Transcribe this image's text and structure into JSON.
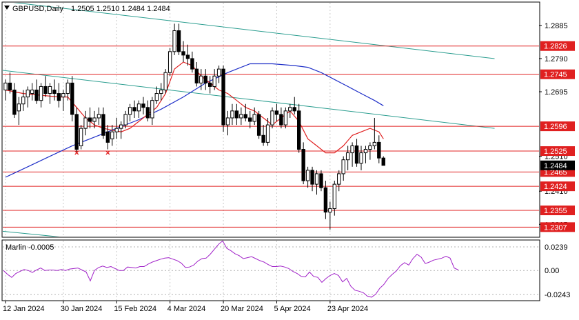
{
  "header": {
    "symbol_label": "GBPUSD,Daily",
    "ohlc_label": "1.2505 1.2510 1.2484 1.2484"
  },
  "indicator": {
    "label": "Marlin -0.0005",
    "ticks": [
      "0.0239",
      "0.00",
      "-0.0243"
    ],
    "values": [
      0.0,
      -0.004,
      -0.007,
      -0.003,
      -0.001,
      0.001,
      0.0,
      -0.002,
      0.0005,
      0.0025,
      0.0,
      0.0005,
      0.0005,
      0.0,
      0.001,
      0.0,
      0.0015,
      0.002,
      0.0025,
      0.0005,
      -0.0015,
      -0.0105,
      0.0,
      0.003,
      0.0045,
      0.003,
      0.004,
      0.002,
      0.0,
      0.0,
      0.0035,
      0.003,
      0.0025,
      0.004,
      0.004,
      0.0065,
      0.0085,
      0.01,
      0.0115,
      0.0125,
      0.013,
      0.0115,
      0.01,
      0.0075,
      0.003,
      0.0035,
      0.0055,
      0.0095,
      0.012,
      0.0125,
      0.0165,
      0.0215,
      0.0265,
      0.03,
      0.0225,
      0.02,
      0.017,
      0.015,
      0.012,
      0.013,
      0.014,
      0.012,
      0.01,
      0.0085,
      0.006,
      0.004,
      0.004,
      0.0045,
      0.0035,
      0.002,
      -0.001,
      -0.003,
      -0.006,
      -0.0065,
      -0.0015,
      -0.006,
      -0.007,
      -0.012,
      -0.008,
      -0.005,
      -0.003,
      -0.005,
      -0.0115,
      -0.008,
      -0.016,
      -0.02,
      -0.021,
      -0.0225,
      -0.026,
      -0.027,
      -0.024,
      -0.018,
      -0.014,
      -0.008,
      -0.004,
      -0.0005,
      0.005,
      0.008,
      0.0055,
      0.012,
      0.0165,
      0.0135,
      0.007,
      0.0085,
      0.0105,
      0.0115,
      0.0125,
      0.0145,
      0.0125,
      0.0025,
      0.0005
    ]
  },
  "chart_data": {
    "type": "candlestick",
    "symbol": "GBPUSD",
    "timeframe": "Daily",
    "ylim": [
      1.228,
      1.295
    ],
    "price_ticks": [
      "1.2885",
      "1.2790",
      "1.2695",
      "1.2510",
      "1.2410",
      "1.2315"
    ],
    "x_labels": [
      "12 Jan 2024",
      "30 Jan 2024",
      "15 Feb 2024",
      "4 Mar 2024",
      "20 Mar 2024",
      "5 Apr 2024",
      "23 Apr 2024"
    ],
    "x_label_bars": [
      0,
      13,
      25,
      37,
      49,
      61,
      73
    ],
    "current_price": "1.2484",
    "levels": [
      {
        "value": 1.2826,
        "label": "1.2826"
      },
      {
        "value": 1.2745,
        "label": "1.2745"
      },
      {
        "value": 1.2596,
        "label": "1.2596"
      },
      {
        "value": 1.2525,
        "label": "1.2525"
      },
      {
        "value": 1.2465,
        "label": "1.2465"
      },
      {
        "value": 1.2424,
        "label": "1.2424"
      },
      {
        "value": 1.2355,
        "label": "1.2355"
      },
      {
        "value": 1.2307,
        "label": "1.2307"
      }
    ],
    "trendlines": [
      {
        "from": [
          -3,
          1.2958
        ],
        "to": [
          110,
          1.279
        ]
      },
      {
        "from": [
          -3,
          1.276
        ],
        "to": [
          110,
          1.259
        ]
      },
      {
        "from": [
          -3,
          1.2298
        ],
        "to": [
          29,
          1.2258
        ]
      }
    ],
    "markers": [
      {
        "bar": 16,
        "price": 1.252,
        "symbol": "×"
      },
      {
        "bar": 23,
        "price": 1.252,
        "symbol": "×"
      }
    ],
    "candles": [
      [
        1.27,
        1.273,
        1.267,
        1.272
      ],
      [
        1.272,
        1.275,
        1.269,
        1.27
      ],
      [
        1.27,
        1.272,
        1.262,
        1.263
      ],
      [
        1.264,
        1.268,
        1.26,
        1.266
      ],
      [
        1.266,
        1.27,
        1.264,
        1.268
      ],
      [
        1.268,
        1.271,
        1.265,
        1.27
      ],
      [
        1.269,
        1.272,
        1.267,
        1.27
      ],
      [
        1.27,
        1.273,
        1.266,
        1.267
      ],
      [
        1.267,
        1.272,
        1.265,
        1.271
      ],
      [
        1.271,
        1.274,
        1.268,
        1.269
      ],
      [
        1.269,
        1.272,
        1.266,
        1.271
      ],
      [
        1.27,
        1.273,
        1.267,
        1.269
      ],
      [
        1.269,
        1.272,
        1.265,
        1.267
      ],
      [
        1.268,
        1.27,
        1.264,
        1.269
      ],
      [
        1.269,
        1.273,
        1.267,
        1.272
      ],
      [
        1.272,
        1.274,
        1.261,
        1.263
      ],
      [
        1.263,
        1.265,
        1.252,
        1.253
      ],
      [
        1.254,
        1.26,
        1.253,
        1.259
      ],
      [
        1.259,
        1.264,
        1.257,
        1.262
      ],
      [
        1.262,
        1.265,
        1.259,
        1.261
      ],
      [
        1.261,
        1.264,
        1.259,
        1.262
      ],
      [
        1.262,
        1.265,
        1.26,
        1.263
      ],
      [
        1.263,
        1.265,
        1.256,
        1.257
      ],
      [
        1.258,
        1.26,
        1.253,
        1.255
      ],
      [
        1.256,
        1.26,
        1.254,
        1.258
      ],
      [
        1.258,
        1.262,
        1.256,
        1.259
      ],
      [
        1.259,
        1.261,
        1.256,
        1.26
      ],
      [
        1.26,
        1.264,
        1.259,
        1.263
      ],
      [
        1.263,
        1.266,
        1.261,
        1.265
      ],
      [
        1.265,
        1.267,
        1.262,
        1.264
      ],
      [
        1.264,
        1.267,
        1.262,
        1.266
      ],
      [
        1.266,
        1.268,
        1.263,
        1.265
      ],
      [
        1.265,
        1.267,
        1.261,
        1.262
      ],
      [
        1.262,
        1.268,
        1.26,
        1.267
      ],
      [
        1.267,
        1.271,
        1.266,
        1.269
      ],
      [
        1.269,
        1.272,
        1.267,
        1.27
      ],
      [
        1.27,
        1.276,
        1.269,
        1.275
      ],
      [
        1.275,
        1.282,
        1.274,
        1.281
      ],
      [
        1.281,
        1.289,
        1.28,
        1.287
      ],
      [
        1.287,
        1.289,
        1.28,
        1.281
      ],
      [
        1.281,
        1.284,
        1.278,
        1.28
      ],
      [
        1.28,
        1.283,
        1.277,
        1.279
      ],
      [
        1.279,
        1.281,
        1.275,
        1.276
      ],
      [
        1.276,
        1.278,
        1.271,
        1.272
      ],
      [
        1.272,
        1.276,
        1.27,
        1.274
      ],
      [
        1.274,
        1.276,
        1.27,
        1.272
      ],
      [
        1.272,
        1.274,
        1.269,
        1.271
      ],
      [
        1.271,
        1.276,
        1.27,
        1.274
      ],
      [
        1.274,
        1.277,
        1.272,
        1.276
      ],
      [
        1.276,
        1.277,
        1.258,
        1.26
      ],
      [
        1.26,
        1.264,
        1.257,
        1.262
      ],
      [
        1.262,
        1.266,
        1.26,
        1.264
      ],
      [
        1.264,
        1.266,
        1.26,
        1.262
      ],
      [
        1.262,
        1.265,
        1.26,
        1.263
      ],
      [
        1.263,
        1.266,
        1.261,
        1.262
      ],
      [
        1.262,
        1.264,
        1.259,
        1.261
      ],
      [
        1.261,
        1.265,
        1.26,
        1.263
      ],
      [
        1.263,
        1.264,
        1.256,
        1.257
      ],
      [
        1.257,
        1.26,
        1.254,
        1.255
      ],
      [
        1.255,
        1.262,
        1.254,
        1.26
      ],
      [
        1.26,
        1.265,
        1.259,
        1.264
      ],
      [
        1.264,
        1.266,
        1.261,
        1.263
      ],
      [
        1.263,
        1.265,
        1.259,
        1.26
      ],
      [
        1.26,
        1.265,
        1.259,
        1.264
      ],
      [
        1.264,
        1.266,
        1.262,
        1.265
      ],
      [
        1.265,
        1.268,
        1.263,
        1.264
      ],
      [
        1.264,
        1.266,
        1.252,
        1.253
      ],
      [
        1.253,
        1.255,
        1.243,
        1.244
      ],
      [
        1.244,
        1.248,
        1.242,
        1.247
      ],
      [
        1.247,
        1.248,
        1.241,
        1.243
      ],
      [
        1.243,
        1.247,
        1.24,
        1.246
      ],
      [
        1.246,
        1.247,
        1.241,
        1.242
      ],
      [
        1.242,
        1.244,
        1.233,
        1.235
      ],
      [
        1.235,
        1.238,
        1.23,
        1.236
      ],
      [
        1.236,
        1.244,
        1.234,
        1.243
      ],
      [
        1.243,
        1.247,
        1.241,
        1.246
      ],
      [
        1.246,
        1.251,
        1.244,
        1.25
      ],
      [
        1.25,
        1.254,
        1.247,
        1.252
      ],
      [
        1.252,
        1.255,
        1.248,
        1.254
      ],
      [
        1.254,
        1.256,
        1.248,
        1.249
      ],
      [
        1.249,
        1.254,
        1.247,
        1.252
      ],
      [
        1.252,
        1.254,
        1.249,
        1.253
      ],
      [
        1.253,
        1.255,
        1.25,
        1.254
      ],
      [
        1.254,
        1.262,
        1.253,
        1.255
      ],
      [
        1.255,
        1.257,
        1.249,
        1.2505
      ],
      [
        1.2505,
        1.251,
        1.2484,
        1.2484
      ]
    ],
    "ma_slow": [
      [
        0,
        1.245
      ],
      [
        5,
        1.248
      ],
      [
        10,
        1.251
      ],
      [
        15,
        1.254
      ],
      [
        20,
        1.2565
      ],
      [
        25,
        1.259
      ],
      [
        30,
        1.2615
      ],
      [
        35,
        1.2645
      ],
      [
        40,
        1.268
      ],
      [
        45,
        1.272
      ],
      [
        50,
        1.275
      ],
      [
        55,
        1.2775
      ],
      [
        60,
        1.2775
      ],
      [
        65,
        1.277
      ],
      [
        68,
        1.2765
      ],
      [
        71,
        1.275
      ],
      [
        74,
        1.273
      ],
      [
        77,
        1.271
      ],
      [
        80,
        1.269
      ],
      [
        83,
        1.267
      ],
      [
        85,
        1.2655
      ]
    ],
    "ma_fast": [
      [
        0,
        1.27
      ],
      [
        4,
        1.269
      ],
      [
        8,
        1.2685
      ],
      [
        12,
        1.268
      ],
      [
        14,
        1.268
      ],
      [
        16,
        1.265
      ],
      [
        18,
        1.262
      ],
      [
        20,
        1.26
      ],
      [
        22,
        1.259
      ],
      [
        24,
        1.2585
      ],
      [
        26,
        1.258
      ],
      [
        28,
        1.259
      ],
      [
        30,
        1.261
      ],
      [
        32,
        1.263
      ],
      [
        34,
        1.265
      ],
      [
        36,
        1.269
      ],
      [
        38,
        1.276
      ],
      [
        40,
        1.278
      ],
      [
        42,
        1.277
      ],
      [
        44,
        1.274
      ],
      [
        46,
        1.272
      ],
      [
        48,
        1.27
      ],
      [
        50,
        1.269
      ],
      [
        52,
        1.267
      ],
      [
        54,
        1.265
      ],
      [
        56,
        1.264
      ],
      [
        58,
        1.262
      ],
      [
        60,
        1.26
      ],
      [
        62,
        1.262
      ],
      [
        64,
        1.264
      ],
      [
        66,
        1.261
      ],
      [
        68,
        1.256
      ],
      [
        70,
        1.254
      ],
      [
        72,
        1.252
      ],
      [
        74,
        1.252
      ],
      [
        76,
        1.254
      ],
      [
        78,
        1.257
      ],
      [
        80,
        1.258
      ],
      [
        82,
        1.259
      ],
      [
        84,
        1.258
      ],
      [
        85,
        1.256
      ]
    ]
  }
}
